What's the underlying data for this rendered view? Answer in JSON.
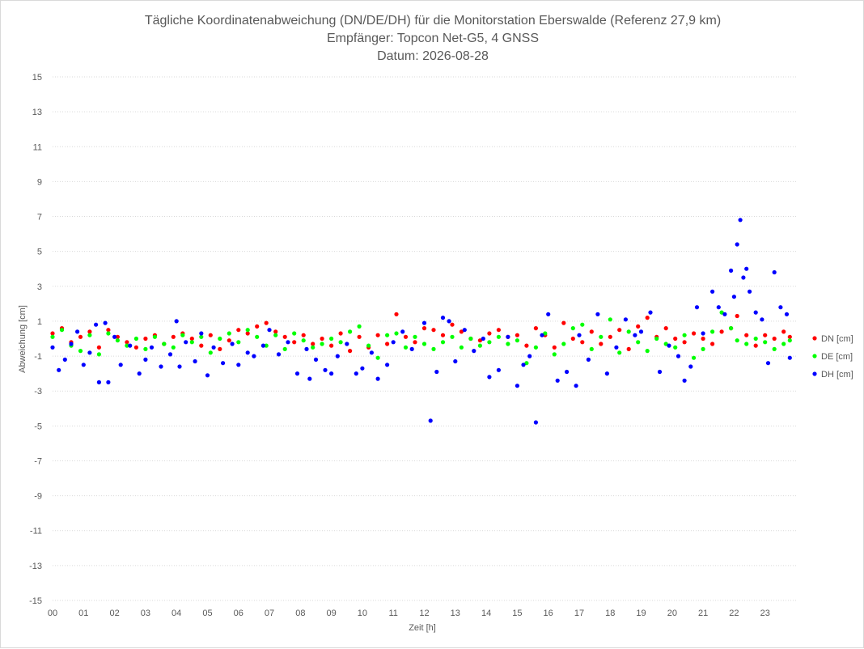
{
  "chart_data": {
    "type": "scatter",
    "title": [
      "Tägliche Koordinatenabweichung (DN/DE/DH) für die Monitorstation Eberswalde (Referenz 27,9 km)",
      "Empfänger: Topcon Net-G5, 4 GNSS",
      "Datum: 2026-08-28"
    ],
    "xlabel": "Zeit [h]",
    "ylabel": "Abweichung [cm]",
    "xlim": [
      0,
      24
    ],
    "ylim": [
      -15,
      15
    ],
    "x_ticks": [
      "00",
      "01",
      "02",
      "03",
      "04",
      "05",
      "06",
      "07",
      "08",
      "09",
      "10",
      "11",
      "12",
      "13",
      "14",
      "15",
      "16",
      "17",
      "18",
      "19",
      "20",
      "21",
      "22",
      "23"
    ],
    "y_ticks": [
      15,
      13,
      11,
      9,
      7,
      5,
      3,
      1,
      -1,
      -3,
      -5,
      -7,
      -9,
      -11,
      -13,
      -15
    ],
    "grid": true,
    "legend_position": "right",
    "series": [
      {
        "name": "DN [cm]",
        "color": "#ff0000",
        "x": [
          0.0,
          0.3,
          0.6,
          0.9,
          1.2,
          1.5,
          1.8,
          2.1,
          2.4,
          2.7,
          3.0,
          3.3,
          3.6,
          3.9,
          4.2,
          4.5,
          4.8,
          5.1,
          5.4,
          5.7,
          6.0,
          6.3,
          6.6,
          6.9,
          7.2,
          7.5,
          7.8,
          8.1,
          8.4,
          8.7,
          9.0,
          9.3,
          9.6,
          9.9,
          10.2,
          10.5,
          10.8,
          11.1,
          11.4,
          11.7,
          12.0,
          12.3,
          12.6,
          12.9,
          13.2,
          13.5,
          13.8,
          14.1,
          14.4,
          14.7,
          15.0,
          15.3,
          15.6,
          15.9,
          16.2,
          16.5,
          16.8,
          17.1,
          17.4,
          17.7,
          18.0,
          18.3,
          18.6,
          18.9,
          19.2,
          19.5,
          19.8,
          20.1,
          20.4,
          20.7,
          21.0,
          21.3,
          21.6,
          21.9,
          22.1,
          22.4,
          22.7,
          23.0,
          23.3,
          23.6,
          23.8
        ],
        "values": [
          0.3,
          0.6,
          -0.2,
          0.1,
          0.4,
          -0.5,
          0.5,
          0.1,
          -0.2,
          -0.5,
          0.0,
          0.2,
          -0.3,
          0.1,
          0.3,
          0.0,
          -0.4,
          0.2,
          -0.6,
          -0.1,
          0.5,
          0.3,
          0.7,
          0.9,
          0.4,
          0.1,
          -0.2,
          0.2,
          -0.3,
          0.0,
          -0.4,
          0.3,
          -0.7,
          0.1,
          -0.5,
          0.2,
          -0.3,
          1.4,
          0.1,
          -0.2,
          0.6,
          0.5,
          0.2,
          0.8,
          0.4,
          0.0,
          -0.1,
          0.3,
          0.5,
          0.1,
          0.2,
          -0.4,
          0.6,
          0.2,
          -0.5,
          0.9,
          0.0,
          -0.2,
          0.4,
          -0.3,
          0.1,
          0.5,
          -0.6,
          0.7,
          1.2,
          0.1,
          0.6,
          0.0,
          -0.2,
          0.3,
          0.0,
          -0.3,
          0.4,
          0.6,
          1.3,
          0.2,
          -0.4,
          0.2,
          0.0,
          0.4,
          0.1
        ]
      },
      {
        "name": "DE [cm]",
        "color": "#00ff00",
        "x": [
          0.0,
          0.3,
          0.6,
          0.9,
          1.2,
          1.5,
          1.8,
          2.1,
          2.4,
          2.7,
          3.0,
          3.3,
          3.6,
          3.9,
          4.2,
          4.5,
          4.8,
          5.1,
          5.4,
          5.7,
          6.0,
          6.3,
          6.6,
          6.9,
          7.2,
          7.5,
          7.8,
          8.1,
          8.4,
          8.7,
          9.0,
          9.3,
          9.6,
          9.9,
          10.2,
          10.5,
          10.8,
          11.1,
          11.4,
          11.7,
          12.0,
          12.3,
          12.6,
          12.9,
          13.2,
          13.5,
          13.8,
          14.1,
          14.4,
          14.7,
          15.0,
          15.3,
          15.6,
          15.9,
          16.2,
          16.5,
          16.8,
          17.1,
          17.4,
          17.7,
          18.0,
          18.3,
          18.6,
          18.9,
          19.2,
          19.5,
          19.8,
          20.1,
          20.4,
          20.7,
          21.0,
          21.3,
          21.6,
          21.9,
          22.1,
          22.4,
          22.7,
          23.0,
          23.3,
          23.6,
          23.8
        ],
        "values": [
          0.1,
          0.5,
          -0.4,
          -0.7,
          0.2,
          -0.9,
          0.3,
          -0.1,
          -0.4,
          0.0,
          -0.6,
          0.1,
          -0.3,
          -0.5,
          0.2,
          -0.2,
          0.1,
          -0.8,
          0.0,
          0.3,
          -0.2,
          0.5,
          0.1,
          -0.4,
          0.2,
          -0.6,
          0.3,
          -0.1,
          -0.5,
          -0.3,
          0.0,
          -0.2,
          0.4,
          0.7,
          -0.4,
          -1.1,
          0.2,
          0.3,
          -0.5,
          0.1,
          -0.3,
          -0.6,
          -0.2,
          0.1,
          -0.5,
          0.0,
          -0.4,
          -0.2,
          0.1,
          -0.3,
          -0.1,
          -1.4,
          -0.5,
          0.3,
          -0.9,
          -0.3,
          0.6,
          0.8,
          -0.6,
          0.1,
          1.1,
          -0.8,
          0.4,
          -0.2,
          -0.7,
          0.0,
          -0.3,
          -0.5,
          0.2,
          -1.1,
          -0.6,
          0.4,
          1.5,
          0.6,
          -0.1,
          -0.3,
          0.0,
          -0.2,
          -0.6,
          -0.3,
          -0.1
        ]
      },
      {
        "name": "DH [cm]",
        "color": "#0000ff",
        "x": [
          0.0,
          0.2,
          0.4,
          0.6,
          0.8,
          1.0,
          1.2,
          1.4,
          1.5,
          1.7,
          1.8,
          2.0,
          2.2,
          2.5,
          2.8,
          3.0,
          3.2,
          3.5,
          3.8,
          4.0,
          4.1,
          4.3,
          4.6,
          4.8,
          5.0,
          5.2,
          5.5,
          5.8,
          6.0,
          6.3,
          6.5,
          6.8,
          7.0,
          7.3,
          7.6,
          7.9,
          8.2,
          8.3,
          8.5,
          8.8,
          9.0,
          9.2,
          9.5,
          9.8,
          10.0,
          10.3,
          10.5,
          10.8,
          11.0,
          11.3,
          11.6,
          12.0,
          12.2,
          12.4,
          12.6,
          12.8,
          13.0,
          13.3,
          13.6,
          13.9,
          14.1,
          14.4,
          14.7,
          15.0,
          15.2,
          15.4,
          15.6,
          15.8,
          16.0,
          16.3,
          16.6,
          16.9,
          17.0,
          17.3,
          17.6,
          17.9,
          18.2,
          18.5,
          18.8,
          19.0,
          19.3,
          19.6,
          19.9,
          20.2,
          20.4,
          20.6,
          20.8,
          21.0,
          21.3,
          21.5,
          21.7,
          21.9,
          22.0,
          22.1,
          22.2,
          22.3,
          22.4,
          22.5,
          22.7,
          22.9,
          23.1,
          23.3,
          23.5,
          23.7,
          23.8
        ],
        "values": [
          -0.5,
          -1.8,
          -1.2,
          -0.3,
          0.4,
          -1.5,
          -0.8,
          0.8,
          -2.5,
          0.9,
          -2.5,
          0.1,
          -1.5,
          -0.4,
          -2.0,
          -1.2,
          -0.5,
          -1.6,
          -0.9,
          1.0,
          -1.6,
          -0.2,
          -1.3,
          0.3,
          -2.1,
          -0.5,
          -1.4,
          -0.3,
          -1.5,
          -0.8,
          -1.0,
          -0.4,
          0.5,
          -0.9,
          -0.2,
          -2.0,
          -0.6,
          -2.3,
          -1.2,
          -1.8,
          -2.0,
          -1.0,
          -0.3,
          -2.0,
          -1.7,
          -0.8,
          -2.3,
          -1.5,
          -0.2,
          0.4,
          -0.6,
          0.9,
          -4.7,
          -1.9,
          1.2,
          1.0,
          -1.3,
          0.5,
          -0.7,
          0.0,
          -2.2,
          -1.8,
          0.1,
          -2.7,
          -1.5,
          -1.0,
          -4.8,
          0.2,
          1.4,
          -2.4,
          -1.9,
          -2.7,
          0.2,
          -1.2,
          1.4,
          -2.0,
          -0.5,
          1.1,
          0.2,
          0.4,
          1.5,
          -1.9,
          -0.4,
          -1.0,
          -2.4,
          -1.6,
          1.8,
          0.3,
          2.7,
          1.8,
          1.4,
          3.9,
          2.4,
          5.4,
          6.8,
          3.5,
          4.0,
          2.7,
          1.5,
          1.1,
          -1.4,
          3.8,
          1.8,
          1.4,
          -1.1
        ]
      }
    ]
  }
}
